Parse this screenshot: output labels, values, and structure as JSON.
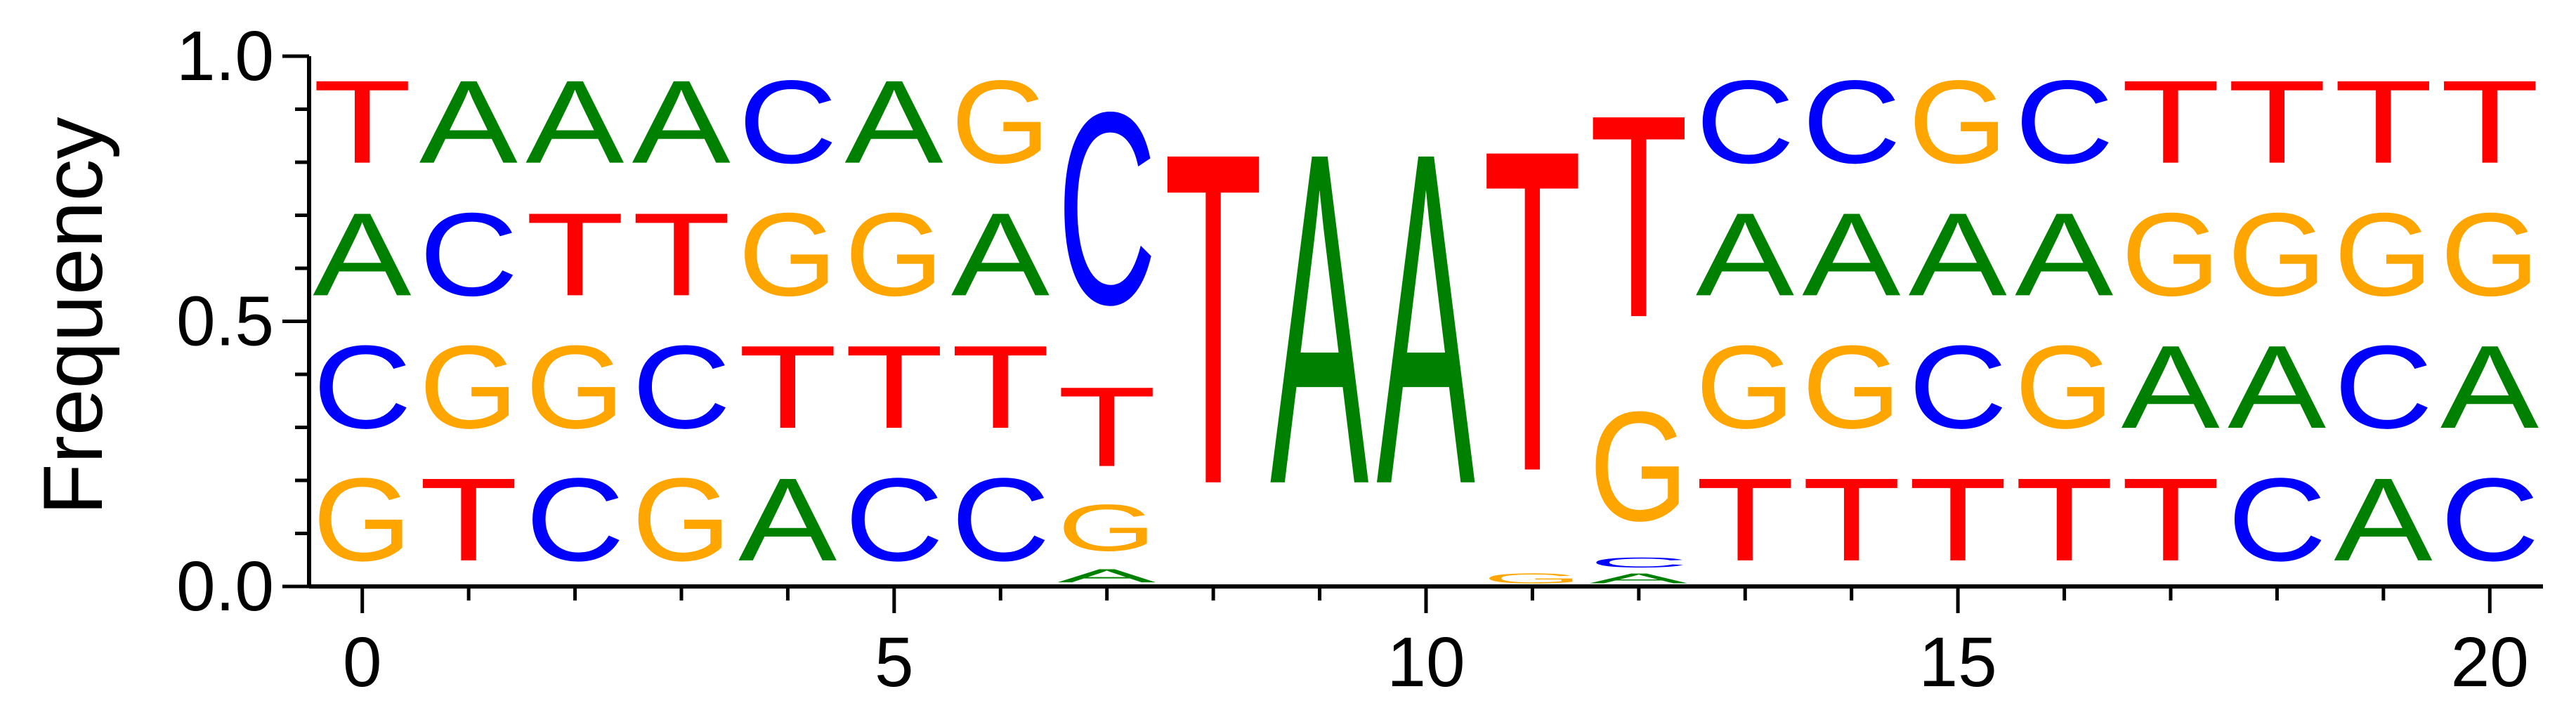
{
  "chart_data": {
    "type": "sequence-logo",
    "title": "",
    "xlabel": "",
    "ylabel": "Frequency",
    "ylim": [
      0,
      1
    ],
    "xlim": [
      -0.5,
      20.5
    ],
    "x_ticks_major": [
      0,
      5,
      10,
      15,
      20
    ],
    "y_ticks_major": [
      0.0,
      0.5,
      1.0
    ],
    "y_tick_labels": [
      "0.0",
      "0.5",
      "1.0"
    ],
    "x_tick_labels": [
      "0",
      "5",
      "10",
      "15",
      "20"
    ],
    "grid": false,
    "colors": {
      "A": "#008000",
      "C": "#0000ff",
      "G": "#ffa500",
      "T": "#ff0000"
    },
    "positions": [
      {
        "x": 0,
        "stack": [
          [
            "G",
            0.25
          ],
          [
            "C",
            0.25
          ],
          [
            "A",
            0.25
          ],
          [
            "T",
            0.25
          ]
        ]
      },
      {
        "x": 1,
        "stack": [
          [
            "T",
            0.25
          ],
          [
            "G",
            0.25
          ],
          [
            "C",
            0.25
          ],
          [
            "A",
            0.25
          ]
        ]
      },
      {
        "x": 2,
        "stack": [
          [
            "C",
            0.25
          ],
          [
            "G",
            0.25
          ],
          [
            "T",
            0.25
          ],
          [
            "A",
            0.25
          ]
        ]
      },
      {
        "x": 3,
        "stack": [
          [
            "G",
            0.25
          ],
          [
            "C",
            0.25
          ],
          [
            "T",
            0.25
          ],
          [
            "A",
            0.25
          ]
        ]
      },
      {
        "x": 4,
        "stack": [
          [
            "A",
            0.25
          ],
          [
            "T",
            0.25
          ],
          [
            "G",
            0.25
          ],
          [
            "C",
            0.25
          ]
        ]
      },
      {
        "x": 5,
        "stack": [
          [
            "C",
            0.25
          ],
          [
            "T",
            0.25
          ],
          [
            "G",
            0.25
          ],
          [
            "A",
            0.25
          ]
        ]
      },
      {
        "x": 6,
        "stack": [
          [
            "C",
            0.25
          ],
          [
            "T",
            0.25
          ],
          [
            "A",
            0.25
          ],
          [
            "G",
            0.25
          ]
        ]
      },
      {
        "x": 7,
        "stack": [
          [
            "A",
            0.04
          ],
          [
            "G",
            0.14
          ],
          [
            "T",
            0.24
          ],
          [
            "C",
            0.58
          ]
        ]
      },
      {
        "x": 8,
        "stack": [
          [
            "T",
            1.0
          ]
        ]
      },
      {
        "x": 9,
        "stack": [
          [
            "A",
            1.0
          ]
        ]
      },
      {
        "x": 10,
        "stack": [
          [
            "A",
            1.0
          ]
        ]
      },
      {
        "x": 11,
        "stack": [
          [
            "G",
            0.03
          ],
          [
            "T",
            0.97
          ]
        ]
      },
      {
        "x": 12,
        "stack": [
          [
            "A",
            0.03
          ],
          [
            "C",
            0.03
          ],
          [
            "G",
            0.33
          ],
          [
            "T",
            0.61
          ]
        ]
      },
      {
        "x": 13,
        "stack": [
          [
            "T",
            0.25
          ],
          [
            "G",
            0.25
          ],
          [
            "A",
            0.25
          ],
          [
            "C",
            0.25
          ]
        ]
      },
      {
        "x": 14,
        "stack": [
          [
            "T",
            0.25
          ],
          [
            "G",
            0.25
          ],
          [
            "A",
            0.25
          ],
          [
            "C",
            0.25
          ]
        ]
      },
      {
        "x": 15,
        "stack": [
          [
            "T",
            0.25
          ],
          [
            "C",
            0.25
          ],
          [
            "A",
            0.25
          ],
          [
            "G",
            0.25
          ]
        ]
      },
      {
        "x": 16,
        "stack": [
          [
            "T",
            0.25
          ],
          [
            "G",
            0.25
          ],
          [
            "A",
            0.25
          ],
          [
            "C",
            0.25
          ]
        ]
      },
      {
        "x": 17,
        "stack": [
          [
            "T",
            0.25
          ],
          [
            "A",
            0.25
          ],
          [
            "G",
            0.25
          ],
          [
            "T",
            0.25
          ]
        ]
      },
      {
        "x": 18,
        "stack": [
          [
            "C",
            0.25
          ],
          [
            "A",
            0.25
          ],
          [
            "G",
            0.25
          ],
          [
            "T",
            0.25
          ]
        ]
      },
      {
        "x": 19,
        "stack": [
          [
            "A",
            0.25
          ],
          [
            "C",
            0.25
          ],
          [
            "G",
            0.25
          ],
          [
            "T",
            0.25
          ]
        ]
      },
      {
        "x": 20,
        "stack": [
          [
            "C",
            0.25
          ],
          [
            "A",
            0.25
          ],
          [
            "G",
            0.25
          ],
          [
            "T",
            0.25
          ]
        ]
      }
    ]
  }
}
